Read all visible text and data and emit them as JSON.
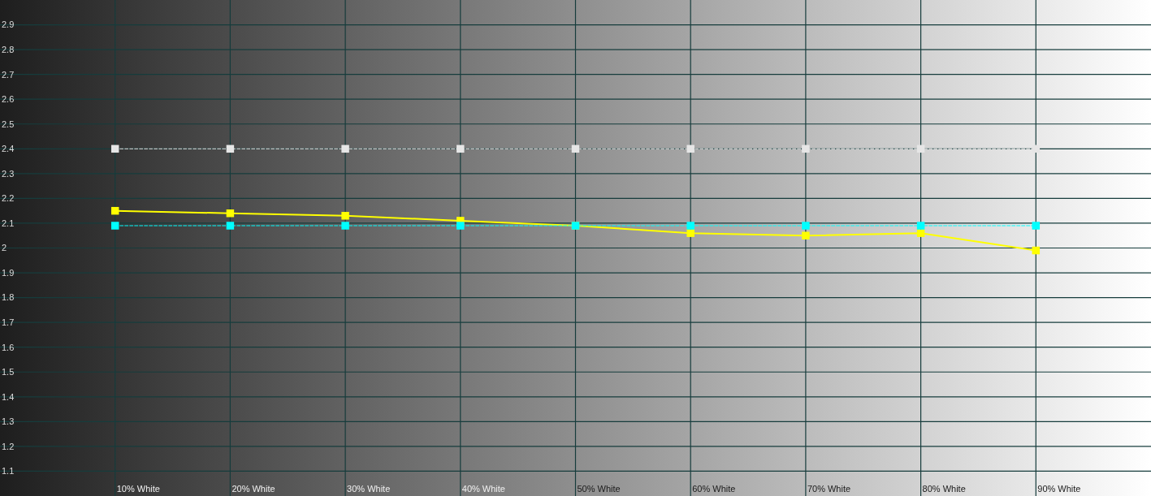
{
  "chart_data": {
    "type": "line",
    "categories": [
      "10% White",
      "20% White",
      "30% White",
      "40% White",
      "50% White",
      "60% White",
      "70% White",
      "80% White",
      "90% White"
    ],
    "series": [
      {
        "color": "#e6e6e6",
        "line_style": "dashed",
        "values": [
          2.4,
          2.4,
          2.4,
          2.4,
          2.4,
          2.4,
          2.4,
          2.4,
          2.4
        ]
      },
      {
        "color": "#ffff00",
        "line_style": "solid",
        "values": [
          2.15,
          2.14,
          2.13,
          2.11,
          2.09,
          2.06,
          2.05,
          2.06,
          1.99
        ]
      },
      {
        "color": "#00ffff",
        "line_style": "dashed",
        "values": [
          2.09,
          2.09,
          2.09,
          2.09,
          2.09,
          2.09,
          2.09,
          2.09,
          2.09
        ]
      }
    ],
    "ylim": [
      1,
      3
    ],
    "yticks": [
      1.1,
      1.2,
      1.3,
      1.4,
      1.5,
      1.6,
      1.7,
      1.8,
      1.9,
      2,
      2.1,
      2.2,
      2.3,
      2.4,
      2.5,
      2.6,
      2.7,
      2.8,
      2.9
    ],
    "grid": true,
    "marker": "square"
  }
}
